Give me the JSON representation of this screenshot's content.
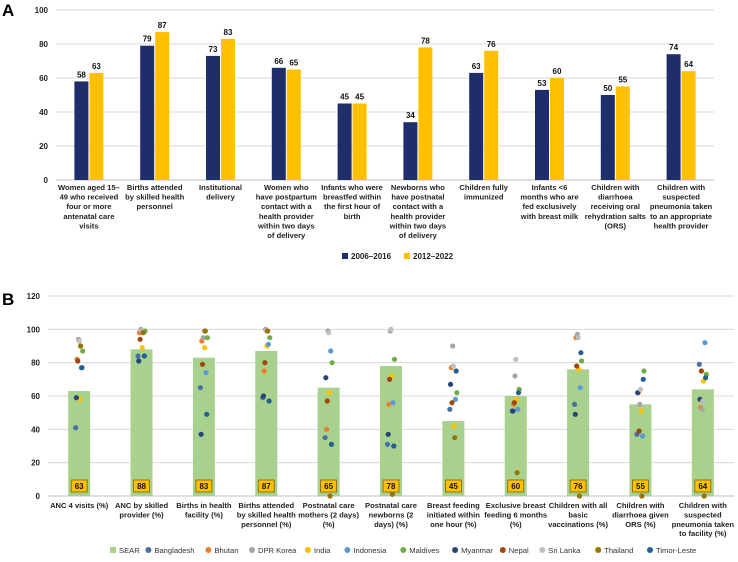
{
  "chart_data": [
    {
      "panel": "A",
      "type": "bar",
      "ylim": [
        0,
        100
      ],
      "yticks": [
        0,
        20,
        40,
        60,
        80,
        100
      ],
      "categories": [
        [
          "Women aged 15–",
          "49 who received",
          "four or more",
          "antenatal care",
          "visits"
        ],
        [
          "Births attended",
          "by skilled health",
          "personnel"
        ],
        [
          "Institutional",
          "delivery"
        ],
        [
          "Women who",
          "have postpartum",
          "contact with a",
          "health provider",
          "within two days",
          "of delivery"
        ],
        [
          "Infants who were",
          "breastfed within",
          "the first hour of",
          "birth"
        ],
        [
          "Newborns who",
          "have postnatal",
          "contact with a",
          "health provider",
          "within two days",
          "of delivery"
        ],
        [
          "Children fully",
          "immunized"
        ],
        [
          "Infants <6",
          "months who are",
          "fed exclusively",
          "with breast milk"
        ],
        [
          "Children with",
          "diarrhoea",
          "receiving oral",
          "rehydration salts",
          "(ORS)"
        ],
        [
          "Children with",
          "suspected",
          "pneumonia taken",
          "to an appropriate",
          "health provider"
        ]
      ],
      "series": [
        {
          "name": "2006–2016",
          "color": "#1f2d6b",
          "values": [
            58,
            79,
            73,
            66,
            45,
            34,
            63,
            53,
            50,
            74
          ]
        },
        {
          "name": "2012–2022",
          "color": "#ffc000",
          "values": [
            63,
            87,
            83,
            65,
            45,
            78,
            76,
            60,
            55,
            64
          ]
        }
      ]
    },
    {
      "panel": "B",
      "type": "bar",
      "ylim": [
        0,
        120
      ],
      "yticks": [
        0,
        20,
        40,
        60,
        80,
        100,
        120
      ],
      "categories": [
        [
          "ANC 4 visits (%)"
        ],
        [
          "ANC by skilled",
          "provider (%)"
        ],
        [
          "Births in health",
          "facility (%)"
        ],
        [
          "Births attended",
          "by skilled health",
          "personnel (%)"
        ],
        [
          "Postnatal care",
          "mothers (2 days)",
          "(%)"
        ],
        [
          "Postnatal care",
          "newborns (2",
          "days) (%)"
        ],
        [
          "Breast feeding",
          "initiated within",
          "one hour (%)"
        ],
        [
          "Exclusive breast",
          "feeding 6 months",
          "(%)"
        ],
        [
          "Children with all",
          "basic",
          "vaccinations (%)"
        ],
        [
          "Children with",
          "diarrhoea given",
          "ORS (%)"
        ],
        [
          "Children with",
          "suspected",
          "pneumonia taken",
          "to facility (%)"
        ]
      ],
      "sear_values": [
        63,
        88,
        83,
        87,
        65,
        78,
        45,
        60,
        76,
        55,
        64
      ],
      "sear_color": "#a9d18e",
      "countries": [
        {
          "name": "Bangladesh",
          "color": "#4a6fa5",
          "values": [
            41,
            84,
            65,
            59,
            35,
            31,
            52,
            51,
            55,
            37,
            79
          ]
        },
        {
          "name": "Bhutan",
          "color": "#ed7d31",
          "values": [
            82,
            98,
            93,
            75,
            40,
            55,
            77,
            55,
            95,
            62,
            53
          ]
        },
        {
          "name": "DPR Korea",
          "color": "#a5a5a5",
          "values": [
            94,
            100,
            95,
            100,
            99,
            99,
            90,
            72,
            97,
            55,
            52
          ]
        },
        {
          "name": "India",
          "color": "#ffc000",
          "values": [
            58,
            89,
            89,
            90,
            62,
            72,
            42,
            58,
            76,
            51,
            69
          ]
        },
        {
          "name": "Indonesia",
          "color": "#5b9bd5",
          "values": [
            77,
            98,
            74,
            91,
            87,
            56,
            58,
            52,
            65,
            36,
            92
          ]
        },
        {
          "name": "Maldives",
          "color": "#70ad47",
          "values": [
            87,
            99,
            95,
            95,
            80,
            82,
            62,
            64,
            81,
            75,
            73
          ]
        },
        {
          "name": "Myanmar",
          "color": "#264478",
          "values": [
            59,
            81,
            37,
            60,
            71,
            37,
            67,
            51,
            49,
            62,
            58
          ]
        },
        {
          "name": "Nepal",
          "color": "#9e480e",
          "values": [
            81,
            94,
            79,
            80,
            57,
            70,
            56,
            56,
            78,
            39,
            75
          ]
        },
        {
          "name": "Sri Lanka",
          "color": "#bfbfbf",
          "values": [
            93,
            99,
            99,
            99,
            98,
            100,
            78,
            82,
            95,
            64,
            57
          ]
        },
        {
          "name": "Thailand",
          "color": "#997300",
          "values": [
            90,
            98,
            99,
            99,
            0,
            1,
            35,
            14,
            0,
            0,
            0
          ]
        },
        {
          "name": "Timor-Leste",
          "color": "#255e91",
          "values": [
            77,
            84,
            49,
            57,
            31,
            30,
            75,
            62,
            86,
            70,
            71
          ]
        }
      ]
    }
  ]
}
